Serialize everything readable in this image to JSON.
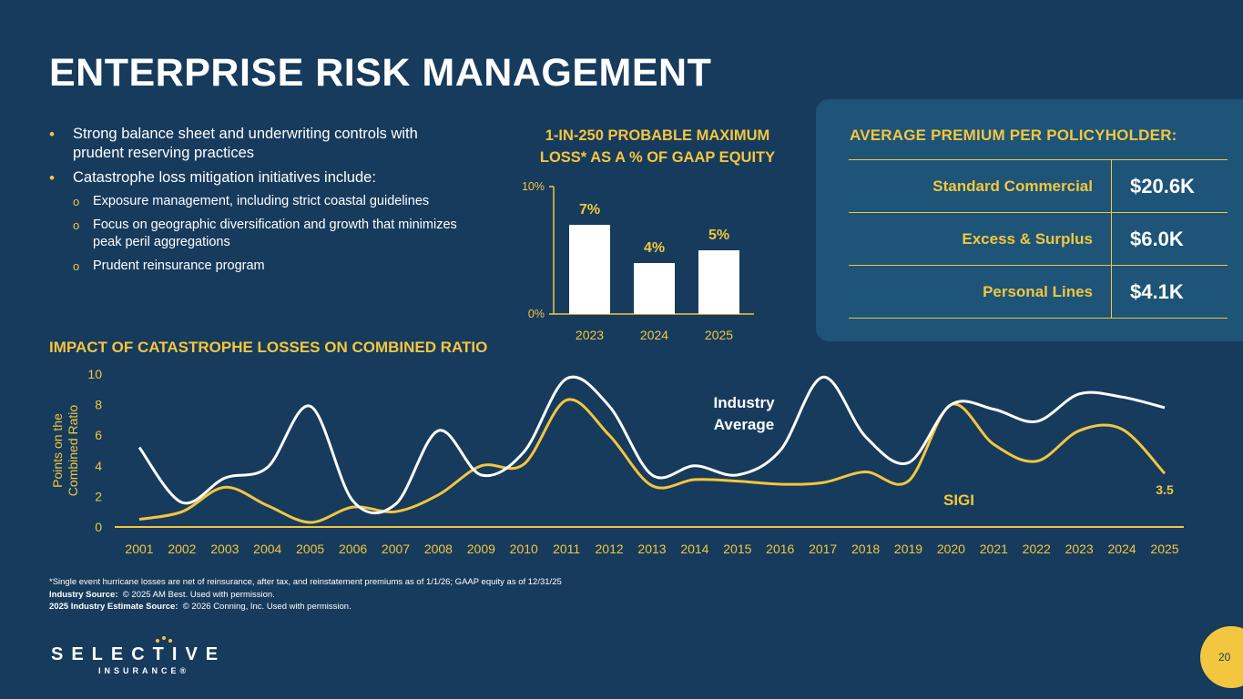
{
  "title": "ENTERPRISE RISK MANAGEMENT",
  "bullets": [
    "Strong balance sheet and underwriting controls with prudent reserving practices",
    "Catastrophe loss mitigation initiatives include:"
  ],
  "sub_bullets": [
    "Exposure management, including strict coastal guidelines",
    "Focus on geographic diversification and growth that minimizes peak peril aggregations",
    "Prudent reinsurance program"
  ],
  "premium": {
    "title": "AVERAGE PREMIUM PER POLICYHOLDER:",
    "rows": [
      {
        "label": "Standard Commercial",
        "value": "$20.6K"
      },
      {
        "label": "Excess & Surplus",
        "value": "$6.0K"
      },
      {
        "label": "Personal Lines",
        "value": "$4.1K"
      }
    ]
  },
  "footnotes": {
    "line1": "*Single event hurricane losses are net of reinsurance, after tax, and reinstatement premiums as of 1/1/26; GAAP equity as of 12/31/25",
    "line2_label": "Industry Source:",
    "line2_text": "© 2025 AM Best. Used with permission.",
    "line3_label": "2025 Industry Estimate Source:",
    "line3_text": "© 2026 Conning, Inc. Used with permission."
  },
  "logo": {
    "main": "SELECTIVE",
    "sub": "INSURANCE®"
  },
  "page_number": "20",
  "colors": {
    "background": "#173b5c",
    "accent": "#f3c63f",
    "panel": "#1d5478",
    "bar": "#ffffff",
    "industry_line": "#ffffff",
    "sigi_line": "#f3c63f"
  },
  "chart_data": [
    {
      "type": "bar",
      "title_line1": "1-IN-250 PROBABLE MAXIMUM",
      "title_line2": "LOSS* AS A % OF GAAP EQUITY",
      "categories": [
        "2023",
        "2024",
        "2025"
      ],
      "values": [
        7,
        4,
        5
      ],
      "data_labels": [
        "7%",
        "4%",
        "5%"
      ],
      "ylim": [
        0,
        10
      ],
      "yticks": [
        0,
        10
      ],
      "ytick_labels": [
        "0%",
        "10%"
      ],
      "grid": false
    },
    {
      "type": "line",
      "title": "IMPACT OF CATASTROPHE LOSSES ON COMBINED RATIO",
      "ylabel_line1": "Points on the",
      "ylabel_line2": "Combined Ratio",
      "x": [
        "2001",
        "2002",
        "2003",
        "2004",
        "2005",
        "2006",
        "2007",
        "2008",
        "2009",
        "2010",
        "2011",
        "2012",
        "2013",
        "2014",
        "2015",
        "2016",
        "2017",
        "2018",
        "2019",
        "2020",
        "2021",
        "2022",
        "2023",
        "2024",
        "2025"
      ],
      "ylim": [
        0,
        10
      ],
      "yticks": [
        0,
        2,
        4,
        6,
        8,
        10
      ],
      "grid": false,
      "series": [
        {
          "name": "Industry Average",
          "label_line1": "Industry",
          "label_line2": "Average",
          "values": [
            5.2,
            1.6,
            3.2,
            3.9,
            7.9,
            1.7,
            1.5,
            6.3,
            3.4,
            4.9,
            9.7,
            7.9,
            3.4,
            4.0,
            3.4,
            5.0,
            9.8,
            5.9,
            4.2,
            8.0,
            7.7,
            6.9,
            8.7,
            8.5,
            7.8
          ]
        },
        {
          "name": "SIGI",
          "label": "SIGI",
          "values": [
            0.5,
            1.0,
            2.6,
            1.4,
            0.3,
            1.3,
            1.0,
            2.1,
            4.0,
            4.1,
            8.3,
            6.0,
            2.7,
            3.1,
            3.0,
            2.8,
            2.9,
            3.6,
            3.0,
            8.0,
            5.4,
            4.3,
            6.3,
            6.4,
            3.5
          ],
          "end_label": "3.5"
        }
      ]
    }
  ]
}
